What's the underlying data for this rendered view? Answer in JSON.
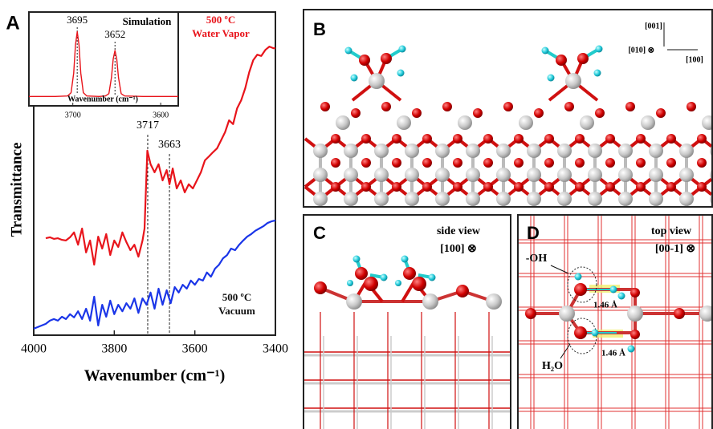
{
  "chart_data": [
    {
      "type": "line",
      "panel": "A",
      "xlabel": "Wavenumber (cm⁻¹)",
      "ylabel": "Transmittance",
      "xlim": [
        4000,
        3400
      ],
      "ylim": [
        0,
        100
      ],
      "xticks": [
        4000,
        3800,
        3600,
        3400
      ],
      "peaks": [
        3717,
        3663
      ],
      "series": [
        {
          "name": "500 ºC\nWater Vapor",
          "color": "#e8141b",
          "x": [
            3970,
            3960,
            3950,
            3940,
            3930,
            3920,
            3910,
            3900,
            3890,
            3880,
            3870,
            3860,
            3850,
            3840,
            3830,
            3820,
            3810,
            3800,
            3790,
            3780,
            3770,
            3760,
            3750,
            3740,
            3730,
            3725,
            3718,
            3710,
            3700,
            3690,
            3680,
            3670,
            3663,
            3655,
            3645,
            3635,
            3625,
            3615,
            3605,
            3595,
            3585,
            3575,
            3565,
            3555,
            3545,
            3535,
            3525,
            3515,
            3505,
            3495,
            3485,
            3475,
            3465,
            3455,
            3445,
            3435,
            3425,
            3415,
            3405,
            3400
          ],
          "values": [
            30,
            30.3,
            29.8,
            30,
            29.5,
            29.3,
            30.3,
            31.8,
            28,
            33,
            25.6,
            29.3,
            21.8,
            30.5,
            26.8,
            31.3,
            24.8,
            29.3,
            27.3,
            31.8,
            28.8,
            26.3,
            28,
            24.3,
            29.3,
            33,
            57.1,
            52.9,
            50.4,
            52.9,
            47.9,
            51.1,
            46.7,
            51.6,
            45.4,
            47.9,
            44.2,
            46.7,
            45.4,
            47.9,
            50.4,
            54.1,
            55.3,
            56.6,
            57.8,
            60.3,
            62.8,
            66.5,
            65.3,
            70.2,
            72.7,
            76.4,
            81.4,
            85.1,
            86.8,
            86.4,
            88.3,
            89.3,
            88.8,
            88.8
          ]
        },
        {
          "name": "500 ºC\nVacuum",
          "color": "#1a35e8",
          "x": [
            4000,
            3990,
            3980,
            3970,
            3960,
            3950,
            3940,
            3930,
            3920,
            3910,
            3900,
            3890,
            3880,
            3870,
            3860,
            3850,
            3840,
            3830,
            3820,
            3810,
            3800,
            3790,
            3780,
            3770,
            3760,
            3750,
            3740,
            3730,
            3720,
            3710,
            3700,
            3690,
            3680,
            3670,
            3660,
            3650,
            3640,
            3630,
            3620,
            3610,
            3600,
            3590,
            3580,
            3570,
            3560,
            3550,
            3540,
            3530,
            3520,
            3510,
            3500,
            3490,
            3480,
            3470,
            3460,
            3450,
            3440,
            3430,
            3420,
            3410,
            3400
          ],
          "values": [
            2,
            2.5,
            3,
            3.5,
            4.5,
            5,
            4.5,
            5.7,
            5,
            6.5,
            5.5,
            7.4,
            5,
            8.2,
            4.5,
            11.9,
            3,
            9.4,
            5.7,
            10.7,
            6.5,
            9.4,
            7.4,
            9.9,
            8.2,
            11.4,
            6.9,
            11.4,
            9.4,
            13.2,
            8.2,
            14.4,
            9.4,
            13.9,
            9.9,
            14.9,
            13.2,
            15.6,
            14.4,
            16.9,
            15.6,
            17.4,
            16.9,
            19.4,
            18.1,
            20.6,
            21.8,
            23.8,
            24.8,
            26.8,
            26.3,
            28,
            29.3,
            30.5,
            31.3,
            32.3,
            33,
            33.7,
            34.7,
            35.2,
            35.5
          ]
        }
      ]
    },
    {
      "type": "line",
      "title": "Simulation",
      "xlabel": "Wavenumber (cm⁻¹)",
      "xlim": [
        3750,
        3580
      ],
      "ylim": [
        0,
        100
      ],
      "xticks": [
        3700,
        3600
      ],
      "peaks": [
        3695,
        3652
      ],
      "series": [
        {
          "color": "#e8141b",
          "x": [
            3750,
            3720,
            3706,
            3702,
            3699,
            3697,
            3695,
            3693,
            3691,
            3688,
            3684,
            3670,
            3663,
            3659,
            3656,
            3654,
            3652,
            3650,
            3648,
            3645,
            3641,
            3620,
            3580
          ],
          "values": [
            10,
            10,
            10.5,
            14,
            35,
            65,
            79,
            65,
            35,
            14,
            10.5,
            10,
            10.5,
            13,
            30,
            50,
            59,
            50,
            30,
            13,
            10.5,
            10,
            10
          ]
        }
      ]
    }
  ],
  "panels": [
    {
      "letter": "B",
      "axes": [
        "[001]",
        "[010] ⊗",
        "[100]"
      ]
    },
    {
      "letter": "C",
      "view": "side view",
      "direction": "[100] ⊗"
    },
    {
      "letter": "D",
      "view": "top view",
      "direction": "[00-1] ⊗",
      "labels": [
        "-OH",
        "H₂O",
        "1.46 Å",
        "1.46 Å"
      ]
    }
  ]
}
